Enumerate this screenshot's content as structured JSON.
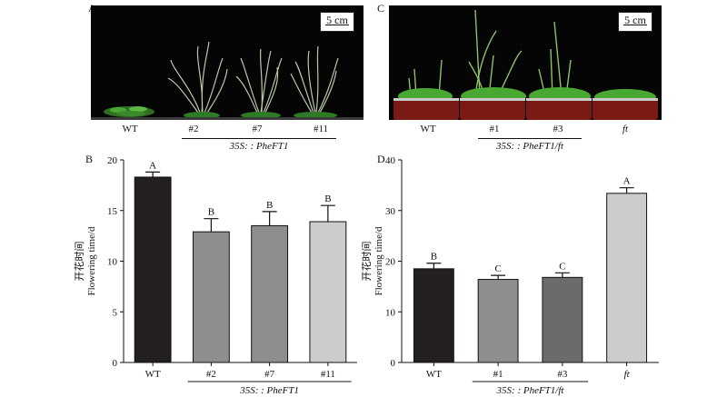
{
  "panels": {
    "A": {
      "letter": "A",
      "scale_label": "5 cm",
      "labels": [
        "WT",
        "#2",
        "#7",
        "#11"
      ],
      "group_label": "35S: : PheFT1"
    },
    "B": {
      "letter": "B"
    },
    "C": {
      "letter": "C",
      "scale_label": "5 cm",
      "labels": [
        "WT",
        "#1",
        "#3",
        "ft"
      ],
      "group_label": "35S: : PheFT1/ft"
    },
    "D": {
      "letter": "D"
    }
  },
  "colors": {
    "black_bar": "#231f20",
    "mid_gray": "#8a8a8a",
    "dark_gray": "#6b6b6b",
    "light_gray": "#c8c8c8",
    "plant_green": "#3f9a2a",
    "pot_red": "#7a1a14"
  },
  "chart_data": [
    {
      "type": "bar",
      "panel": "B",
      "categories": [
        "WT",
        "#2",
        "#7",
        "#11"
      ],
      "values": [
        18.3,
        12.9,
        13.5,
        13.9
      ],
      "errors": [
        0.5,
        1.3,
        1.4,
        1.6
      ],
      "significance": [
        "A",
        "B",
        "B",
        "B"
      ],
      "bar_colors": [
        "#231f20",
        "#8e8e8e",
        "#8e8e8e",
        "#cccccc"
      ],
      "ylabel_cn": "开花时间",
      "ylabel_en": "Flowering time/d",
      "ylim": [
        0,
        20
      ],
      "yticks": [
        0,
        5,
        10,
        15,
        20
      ],
      "group_label": "35S: : PheFT1",
      "group_span": [
        1,
        3
      ]
    },
    {
      "type": "bar",
      "panel": "D",
      "categories": [
        "WT",
        "#1",
        "#3",
        "ft"
      ],
      "values": [
        18.5,
        16.4,
        16.8,
        33.4
      ],
      "errors": [
        1.1,
        0.8,
        0.9,
        1.1
      ],
      "significance": [
        "B",
        "C",
        "C",
        "A"
      ],
      "bar_colors": [
        "#231f20",
        "#8e8e8e",
        "#6b6b6b",
        "#cccccc"
      ],
      "ylabel_cn": "开花时间",
      "ylabel_en": "Flowering time/d",
      "ylim": [
        0,
        40
      ],
      "yticks": [
        0,
        10,
        20,
        30,
        40
      ],
      "group_label": "35S: : PheFT1/ft",
      "group_span": [
        1,
        2
      ]
    }
  ]
}
